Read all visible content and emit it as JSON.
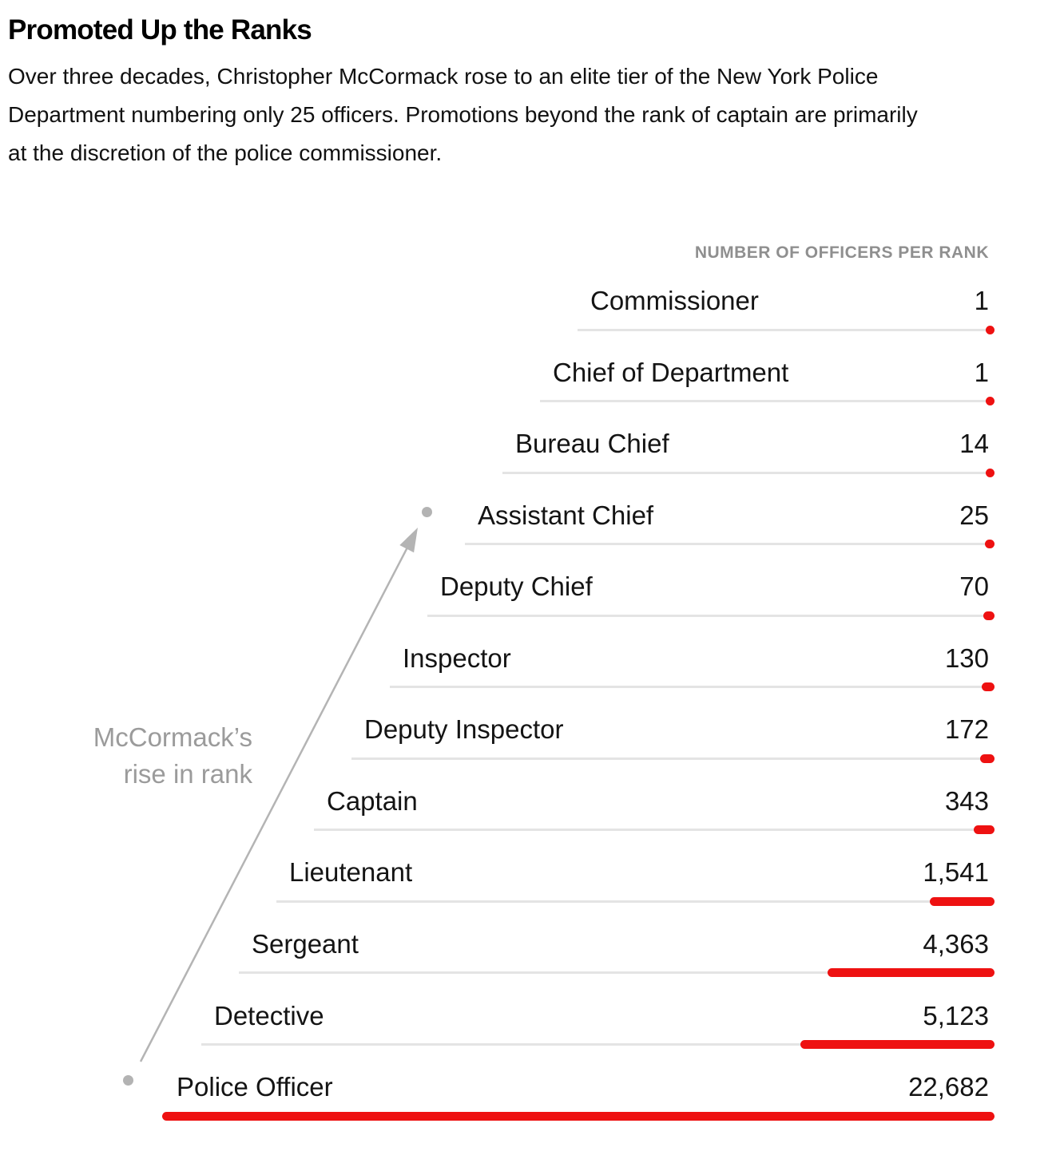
{
  "header": {
    "title": "Promoted Up the Ranks",
    "subtitle_lines": [
      "Over three decades, Christopher McCormack rose to an elite tier of the New York Police",
      "Department numbering only 25 officers. Promotions beyond the rank of captain are primarily",
      "at the discretion of the police commissioner."
    ]
  },
  "chart_data": {
    "type": "bar",
    "orientation": "horizontal",
    "column_header": "NUMBER OF OFFICERS PER RANK",
    "categories": [
      "Commissioner",
      "Chief of Department",
      "Bureau Chief",
      "Assistant Chief",
      "Deputy Chief",
      "Inspector",
      "Deputy Inspector",
      "Captain",
      "Lieutenant",
      "Sergeant",
      "Detective",
      "Police Officer"
    ],
    "values": [
      1,
      1,
      14,
      25,
      70,
      130,
      172,
      343,
      1541,
      4363,
      5123,
      22682
    ],
    "value_labels": [
      "1",
      "1",
      "14",
      "25",
      "70",
      "130",
      "172",
      "343",
      "1,541",
      "4,363",
      "5,123",
      "22,682"
    ],
    "xlim": [
      0,
      22682
    ],
    "legend": "none",
    "gridlines": "one baseline per row, staggered staircase layout",
    "annotation": {
      "line1": "McCormack’s",
      "line2": "rise in rank",
      "from_rank": "Police Officer",
      "to_rank": "Assistant Chief"
    },
    "colors": {
      "bar_red": "#ee1111",
      "baseline_gray": "#e4e4e4",
      "muted_text": "#8f8f8f",
      "annotation_gray": "#9b9b9b",
      "arrow_gray": "#b4b4b4",
      "text_dark": "#141414"
    }
  }
}
